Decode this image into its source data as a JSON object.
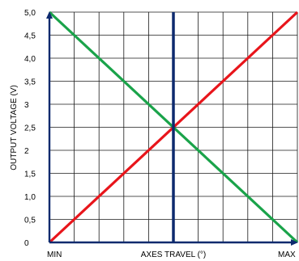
{
  "chart_data": {
    "type": "line",
    "title": "",
    "xlabel": "AXES TRAVEL (°)",
    "ylabel": "OUTPUT VOLTAGE (V)",
    "x_tick_labels": {
      "min": "MIN",
      "max": "MAX"
    },
    "x": [
      0,
      1
    ],
    "xlim": [
      0,
      1
    ],
    "ylim": [
      0,
      5
    ],
    "y_ticks": [
      0,
      0.5,
      1.0,
      1.5,
      2.0,
      2.5,
      3.0,
      3.5,
      4.0,
      4.5,
      5.0
    ],
    "y_tick_labels": [
      "0",
      "0,5",
      "1,0",
      "1,5",
      "2",
      "2,5",
      "3",
      "3,5",
      "4,0",
      "4,5",
      "5,0"
    ],
    "grid": true,
    "series": [
      {
        "color": "#e8151b",
        "values": [
          0,
          5
        ]
      },
      {
        "color": "#1aa34a",
        "values": [
          5,
          0
        ]
      }
    ],
    "center_line": {
      "x": 0.5,
      "color": "#0d2a6e"
    },
    "axis_color": "#0d2a6e"
  }
}
